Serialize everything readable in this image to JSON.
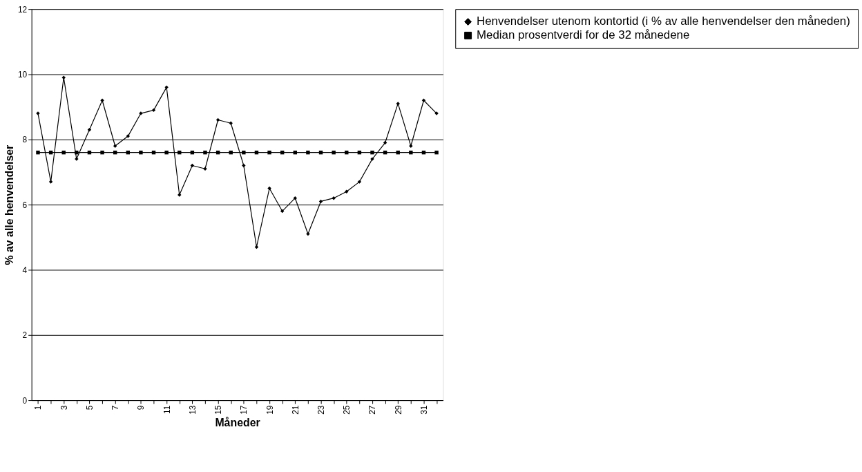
{
  "chart_data": {
    "type": "line",
    "xlabel": "Måneder",
    "ylabel": "% av alle henvendelser",
    "categories": [
      "1",
      null,
      "3",
      null,
      "5",
      null,
      "7",
      null,
      "9",
      null,
      "11",
      null,
      "13",
      null,
      "15",
      null,
      "17",
      null,
      "19",
      null,
      "21",
      null,
      "23",
      null,
      "25",
      null,
      "27",
      null,
      "29",
      null,
      "31",
      null
    ],
    "series": [
      {
        "name": "Henvendelser utenom kontortid (i % av alle henvendelser den måneden)",
        "color": "#000000",
        "marker": "diamond",
        "values": [
          8.8,
          6.7,
          9.9,
          7.4,
          8.3,
          9.2,
          7.8,
          8.1,
          8.8,
          8.9,
          9.6,
          6.3,
          7.2,
          7.1,
          8.6,
          8.5,
          7.2,
          4.7,
          6.5,
          5.8,
          6.2,
          5.1,
          6.1,
          6.2,
          6.4,
          6.7,
          7.4,
          7.9,
          9.1,
          7.8,
          9.2,
          8.8
        ]
      },
      {
        "name": "Median prosentverdi for de 32 månedene",
        "color": "#000000",
        "marker": "square",
        "values": [
          7.6,
          7.6,
          7.6,
          7.6,
          7.6,
          7.6,
          7.6,
          7.6,
          7.6,
          7.6,
          7.6,
          7.6,
          7.6,
          7.6,
          7.6,
          7.6,
          7.6,
          7.6,
          7.6,
          7.6,
          7.6,
          7.6,
          7.6,
          7.6,
          7.6,
          7.6,
          7.6,
          7.6,
          7.6,
          7.6,
          7.6,
          7.6
        ]
      }
    ],
    "ylim": [
      0,
      12
    ],
    "yticks": [
      0,
      2,
      4,
      6,
      8,
      10,
      12
    ],
    "grid": "y",
    "legend": "right",
    "line_style": "solid"
  }
}
